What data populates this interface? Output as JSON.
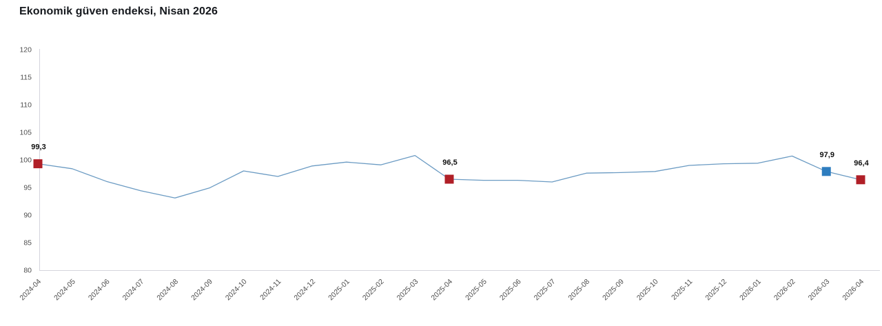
{
  "header": {
    "title": "Ekonomik güven endeksi, Nisan 2026"
  },
  "chart_data": {
    "type": "line",
    "title": "Ekonomik güven endeksi, Nisan 2026",
    "xlabel": "",
    "ylabel": "",
    "ylim": [
      80,
      120
    ],
    "ytick_step": 5,
    "grid": false,
    "legend_position": "none",
    "x": [
      "2024-04",
      "2024-05",
      "2024-06",
      "2024-07",
      "2024-08",
      "2024-09",
      "2024-10",
      "2024-11",
      "2024-12",
      "2025-01",
      "2025-02",
      "2025-03",
      "2025-04",
      "2025-05",
      "2025-06",
      "2025-07",
      "2025-08",
      "2025-09",
      "2025-10",
      "2025-11",
      "2025-12",
      "2026-01",
      "2026-02",
      "2026-03",
      "2026-04"
    ],
    "series": [
      {
        "name": "Ekonomik güven endeksi",
        "values": [
          99.3,
          98.4,
          96.1,
          94.4,
          93.1,
          94.9,
          98.0,
          97.0,
          98.9,
          99.6,
          99.1,
          100.8,
          96.5,
          96.3,
          96.3,
          96.0,
          97.6,
          97.7,
          97.9,
          99.0,
          99.3,
          99.4,
          100.7,
          97.9,
          96.4
        ]
      }
    ],
    "annotated_points": [
      {
        "x": "2024-04",
        "value": 99.3,
        "label": "99,3",
        "marker_color": "#b01f27"
      },
      {
        "x": "2025-04",
        "value": 96.5,
        "label": "96,5",
        "marker_color": "#b01f27"
      },
      {
        "x": "2026-03",
        "value": 97.9,
        "label": "97,9",
        "marker_color": "#2e7dbf"
      },
      {
        "x": "2026-04",
        "value": 96.4,
        "label": "96,4",
        "marker_color": "#b01f27"
      }
    ],
    "colors": {
      "line": "#6b9bc3",
      "red_marker": "#b01f27",
      "blue_marker": "#2e7dbf",
      "axis": "#d4d4dc",
      "tick_text": "#4d4d4d",
      "label_text": "#101010",
      "background": "#ffffff"
    }
  }
}
